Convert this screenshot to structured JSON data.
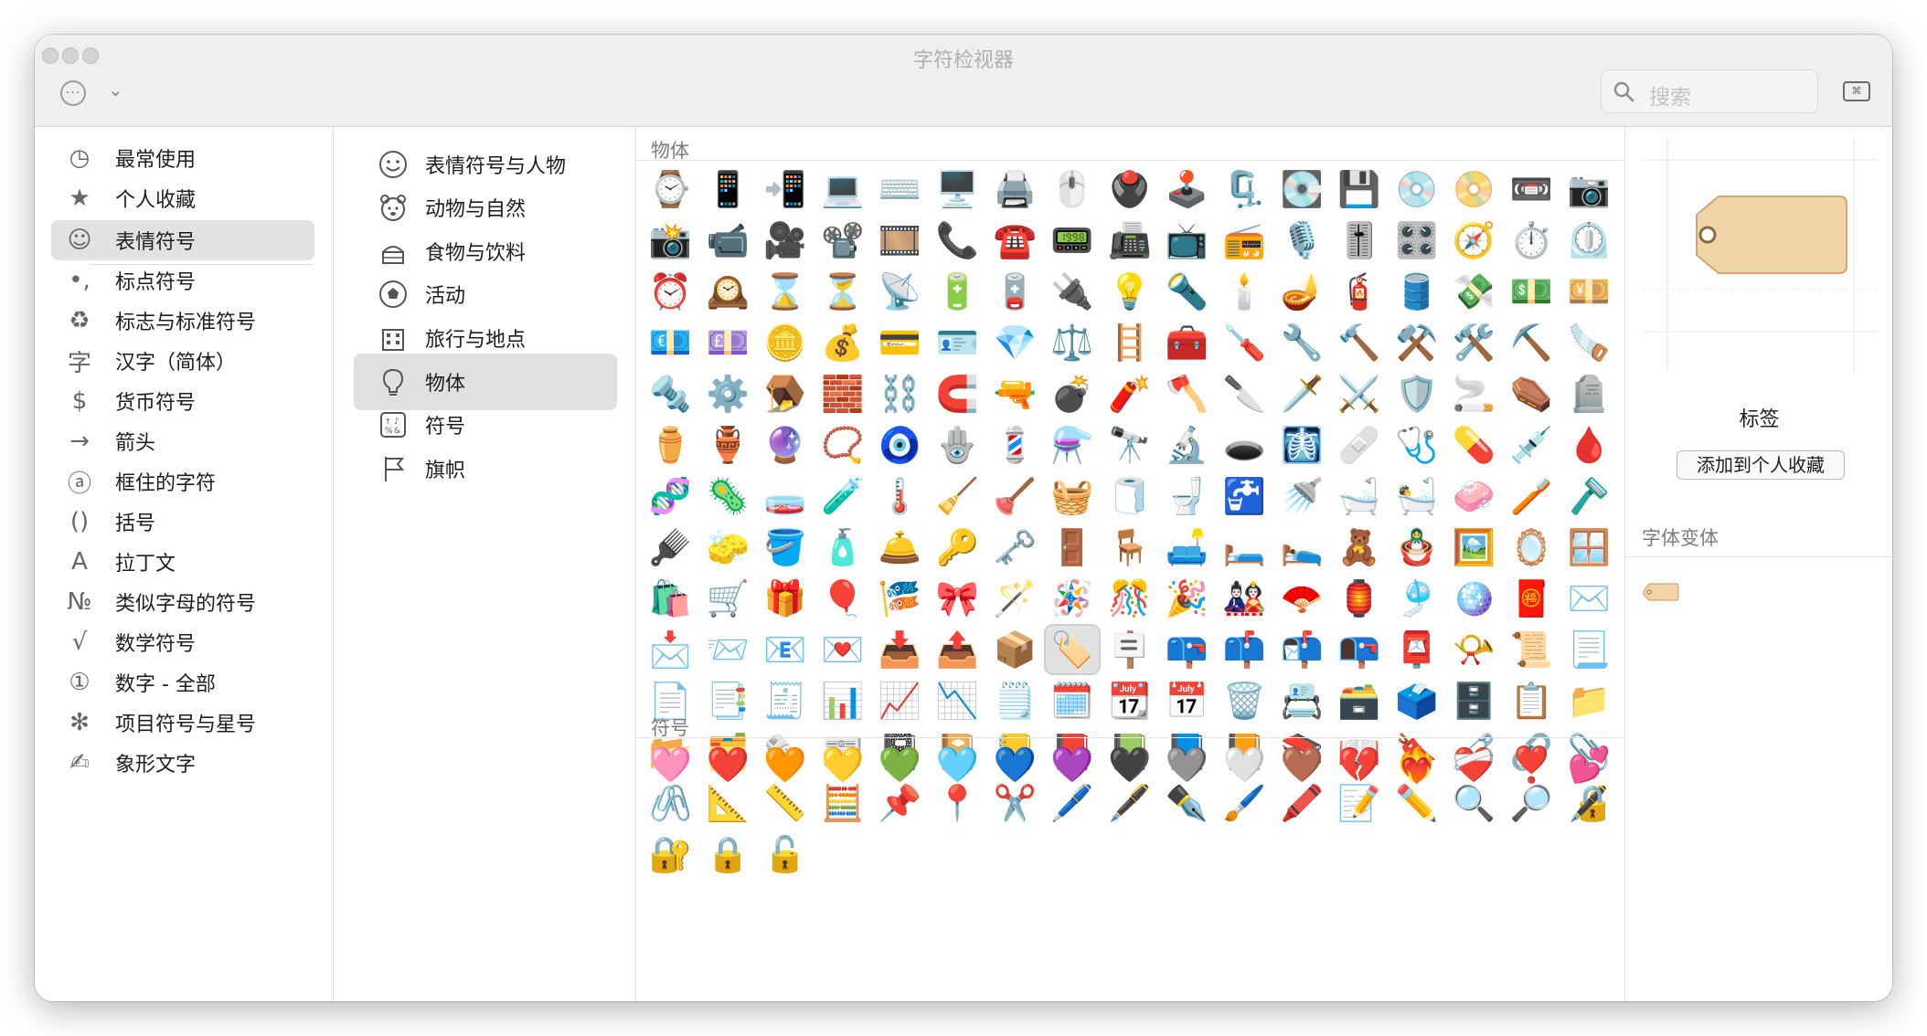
{
  "window": {
    "title": "字符检视器"
  },
  "toolbar": {
    "search_placeholder": "搜索"
  },
  "sidebar_primary": [
    {
      "label": "最常使用",
      "icon": "clock-icon"
    },
    {
      "label": "个人收藏",
      "icon": "star-icon"
    },
    {
      "label": "表情符号",
      "icon": "smiley-icon",
      "selected": true
    },
    {
      "label": "标点符号",
      "icon": "punctuation-icon"
    },
    {
      "label": "标志与标准符号",
      "icon": "recycle-icon"
    },
    {
      "label": "汉字（简体）",
      "icon": "hanzi-icon"
    },
    {
      "label": "货币符号",
      "icon": "dollar-icon"
    },
    {
      "label": "箭头",
      "icon": "arrow-icon"
    },
    {
      "label": "框住的字符",
      "icon": "circled-a-icon"
    },
    {
      "label": "括号",
      "icon": "parentheses-icon"
    },
    {
      "label": "拉丁文",
      "icon": "latin-a-icon"
    },
    {
      "label": "类似字母的符号",
      "icon": "numero-icon"
    },
    {
      "label": "数学符号",
      "icon": "sqrt-icon"
    },
    {
      "label": "数字 - 全部",
      "icon": "circled-one-icon"
    },
    {
      "label": "项目符号与星号",
      "icon": "asterisk-icon"
    },
    {
      "label": "象形文字",
      "icon": "pictograph-icon"
    }
  ],
  "sidebar_secondary": [
    {
      "label": "表情符号与人物",
      "icon": "smiley-icon"
    },
    {
      "label": "动物与自然",
      "icon": "bear-icon"
    },
    {
      "label": "食物与饮料",
      "icon": "cake-icon"
    },
    {
      "label": "活动",
      "icon": "soccer-ball-icon"
    },
    {
      "label": "旅行与地点",
      "icon": "building-icon"
    },
    {
      "label": "物体",
      "icon": "lightbulb-icon",
      "selected": true
    },
    {
      "label": "符号",
      "icon": "symbols-icon"
    },
    {
      "label": "旗帜",
      "icon": "flag-icon"
    }
  ],
  "sections": {
    "objects_title": "物体",
    "symbols_title": "符号"
  },
  "objects_emoji": [
    "⌚",
    "📱",
    "📲",
    "💻",
    "⌨️",
    "🖥️",
    "🖨️",
    "🖱️",
    "🖲️",
    "🕹️",
    "🗜️",
    "💽",
    "💾",
    "💿",
    "📀",
    "📼",
    "📷",
    "📸",
    "📹",
    "🎥",
    "📽️",
    "🎞️",
    "📞",
    "☎️",
    "📟",
    "📠",
    "📺",
    "📻",
    "🎙️",
    "🎚️",
    "🎛️",
    "🧭",
    "⏱️",
    "⏲️",
    "⏰",
    "🕰️",
    "⌛",
    "⏳",
    "📡",
    "🔋",
    "🪫",
    "🔌",
    "💡",
    "🔦",
    "🕯️",
    "🪔",
    "🧯",
    "🛢️",
    "💸",
    "💵",
    "💴",
    "💶",
    "💷",
    "🪙",
    "💰",
    "💳",
    "🪪",
    "💎",
    "⚖️",
    "🪜",
    "🧰",
    "🪛",
    "🔧",
    "🔨",
    "⚒️",
    "🛠️",
    "⛏️",
    "🪚",
    "🔩",
    "⚙️",
    "🪤",
    "🧱",
    "⛓️",
    "🧲",
    "🔫",
    "💣",
    "🧨",
    "🪓",
    "🔪",
    "🗡️",
    "⚔️",
    "🛡️",
    "🚬",
    "⚰️",
    "🪦",
    "⚱️",
    "🏺",
    "🔮",
    "📿",
    "🧿",
    "🪬",
    "💈",
    "⚗️",
    "🔭",
    "🔬",
    "🕳️",
    "🩻",
    "🩹",
    "🩺",
    "💊",
    "💉",
    "🩸",
    "🧬",
    "🦠",
    "🧫",
    "🧪",
    "🌡️",
    "🧹",
    "🪠",
    "🧺",
    "🧻",
    "🚽",
    "🚰",
    "🚿",
    "🛁",
    "🛀",
    "🧼",
    "🪥",
    "🪒",
    "🪮",
    "🧽",
    "🪣",
    "🧴",
    "🛎️",
    "🔑",
    "🗝️",
    "🚪",
    "🪑",
    "🛋️",
    "🛏️",
    "🛌",
    "🧸",
    "🪆",
    "🖼️",
    "🪞",
    "🪟",
    "🛍️",
    "🛒",
    "🎁",
    "🎈",
    "🎏",
    "🎀",
    "🪄",
    "🪅",
    "🎊",
    "🎉",
    "🎎",
    "🪭",
    "🏮",
    "🎐",
    "🪩",
    "🧧",
    "✉️",
    "📩",
    "📨",
    "📧",
    "💌",
    "📥",
    "📤",
    "📦",
    "🏷️",
    "🪧",
    "📪",
    "📫",
    "📬",
    "📭",
    "📮",
    "📯",
    "📜",
    "📃",
    "📄",
    "📑",
    "🧾",
    "📊",
    "📈",
    "📉",
    "🗒️",
    "🗓️",
    "📆",
    "📅",
    "🗑️",
    "📇",
    "🗃️",
    "🗳️",
    "🗄️",
    "📋",
    "📁",
    "📂",
    "🗂️",
    "🗞️",
    "📰",
    "📓",
    "📔",
    "📒",
    "📕",
    "📗",
    "📘",
    "📙",
    "📚",
    "📖",
    "🔖",
    "🧷",
    "🔗",
    "📎",
    "🖇️",
    "📐",
    "📏",
    "🧮",
    "📌",
    "📍",
    "✂️",
    "🖊️",
    "🖋️",
    "✒️",
    "🖌️",
    "🖍️",
    "📝",
    "✏️",
    "🔍",
    "🔎",
    "🔏",
    "🔐",
    "🔒",
    "🔓"
  ],
  "symbols_emoji": [
    "🩷",
    "❤️",
    "🧡",
    "💛",
    "💚",
    "🩵",
    "💙",
    "💜",
    "🖤",
    "🩶",
    "🤍",
    "🤎",
    "💔",
    "❤️‍🔥",
    "❤️‍🩹",
    "❣️",
    "💕"
  ],
  "inspector": {
    "char_name": "标签",
    "add_favorite_label": "添加到个人收藏",
    "font_variants_title": "字体变体"
  },
  "colors": {
    "selection_bg": "#e2e2e2",
    "tag_fill": "#f0d4a8",
    "tag_stroke": "#cfa772"
  }
}
